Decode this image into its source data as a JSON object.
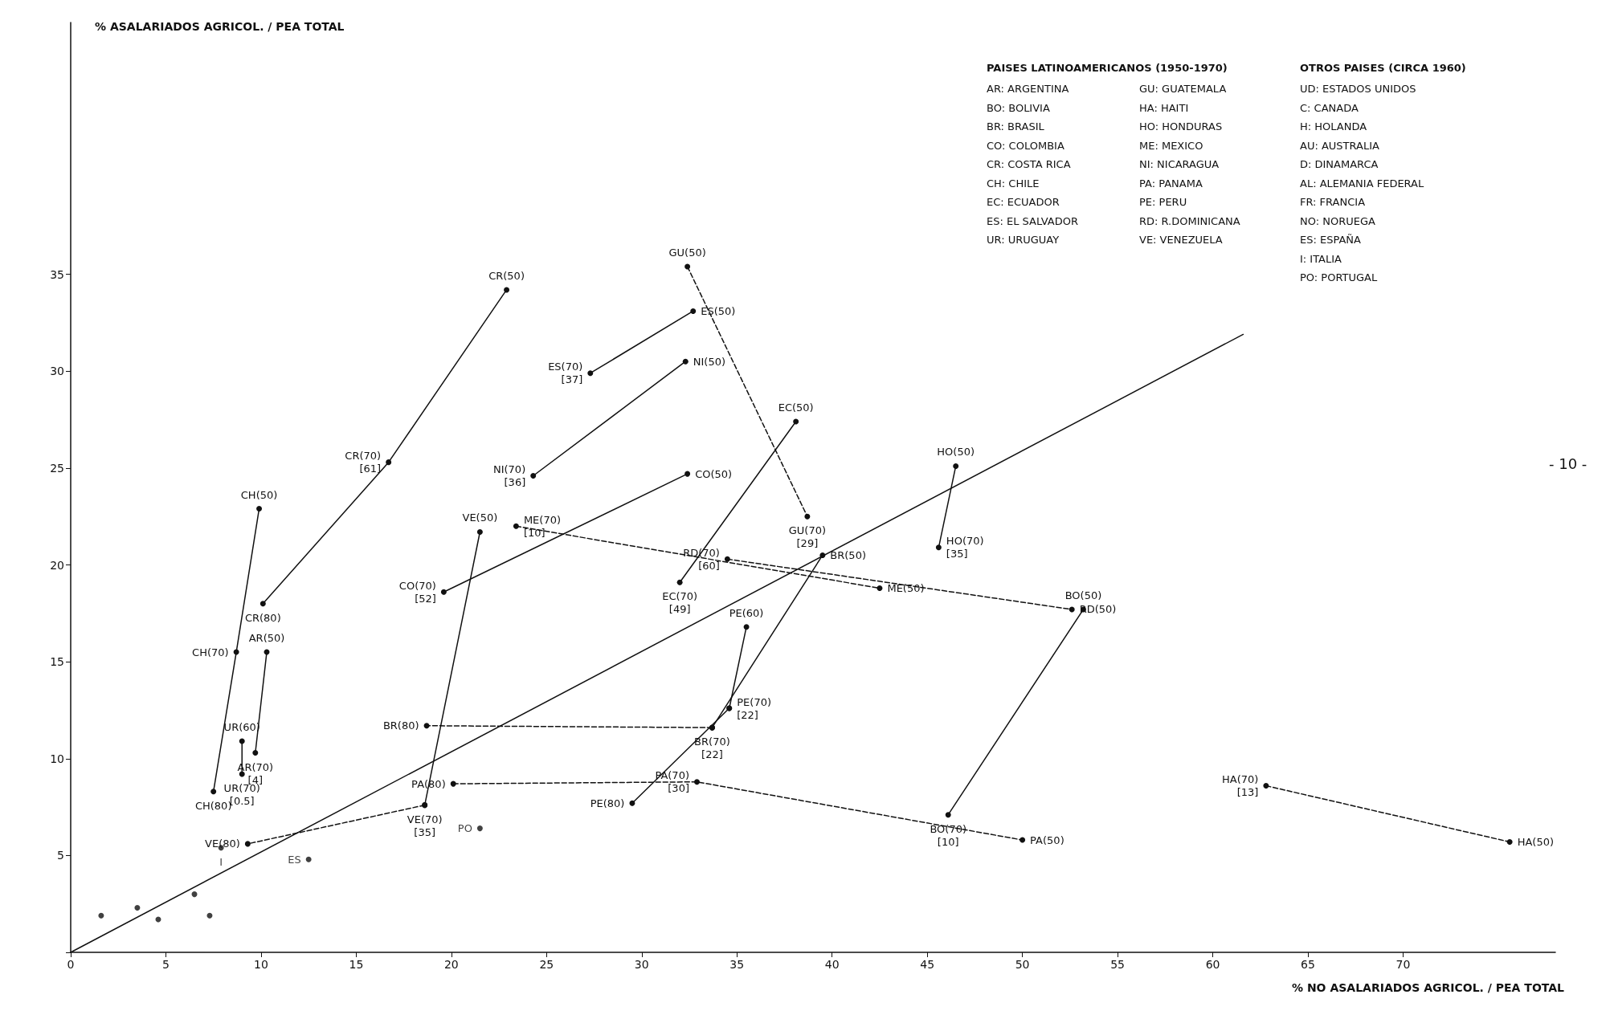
{
  "chart_data": {
    "type": "line",
    "xlabel": "% NO ASALARIADOS AGRICOL. / PEA TOTAL",
    "ylabel": "% ASALARIADOS AGRICOL. / PEA TOTAL",
    "xlim": [
      0,
      78
    ],
    "xticks": [
      0,
      5,
      10,
      15,
      20,
      25,
      30,
      35,
      40,
      45,
      50,
      55,
      60,
      65,
      70
    ],
    "ylim": [
      0,
      48
    ],
    "yticks": [
      {
        "value": 0,
        "label": null
      },
      5,
      10,
      15,
      20,
      25,
      30,
      35
    ],
    "grid": false,
    "marker": "circle",
    "annotations": [
      "PAISES LATINOAMERICANOS (1950-1970)",
      "AR: ARGENTINA",
      "BO: BOLIVIA",
      "BR: BRASIL",
      "CO: COLOMBIA",
      "CR: COSTA RICA",
      "CH: CHILE",
      "EC: ECUADOR",
      "ES: EL SALVADOR",
      "UR: URUGUAY",
      "GU: GUATEMALA",
      "HA: HAITI",
      "HO: HONDURAS",
      "ME: MEXICO",
      "NI: NICARAGUA",
      "PA: PANAMA",
      "PE: PERU",
      "RD: R.DOMINICANA",
      "VE: VENEZUELA",
      "OTROS PAISES (CIRCA 1960)",
      "UD: ESTADOS UNIDOS",
      "C: CANADA",
      "H: HOLANDA",
      "AU: AUSTRALIA",
      "D: DINAMARCA",
      "AL: ALEMANIA FEDERAL",
      "FR: FRANCIA",
      "NO: NORUEGA",
      "ES: ESPAÑA",
      "I: ITALIA",
      "PO: PORTUGAL",
      "- 10 -"
    ],
    "series": [
      {
        "x": [
          0,
          61.6
        ],
        "values": [
          0,
          31.9
        ],
        "marker": "none",
        "line_style": "solid"
      },
      {
        "x": [
          22.9,
          16.7,
          10.1
        ],
        "values": [
          34.2,
          25.3,
          18.0
        ],
        "value_labels": [
          "CR(50)",
          "CR(70)\n[61]",
          "CR(80)"
        ],
        "line_style": "solid"
      },
      {
        "x": [
          9.9,
          8.7,
          7.5
        ],
        "values": [
          22.9,
          15.5,
          8.3
        ],
        "value_labels": [
          "CH(50)",
          "CH(70)",
          "CH(80)"
        ],
        "line_style": "solid"
      },
      {
        "x": [
          10.3,
          9.7
        ],
        "values": [
          15.5,
          10.3
        ],
        "value_labels": [
          "AR(50)",
          "AR(70)\n[4]"
        ],
        "line_style": "solid"
      },
      {
        "x": [
          9.0,
          9.0
        ],
        "values": [
          10.9,
          9.2
        ],
        "value_labels": [
          "UR(60)",
          "UR(70)\n[0.5]"
        ],
        "line_style": "solid"
      },
      {
        "x": [
          32.7,
          27.3
        ],
        "values": [
          33.1,
          29.9
        ],
        "value_labels": [
          "ES(50)",
          "ES(70)\n[37]"
        ],
        "line_style": "solid"
      },
      {
        "x": [
          32.3,
          24.3
        ],
        "values": [
          30.5,
          24.6
        ],
        "value_labels": [
          "NI(50)",
          "NI(70)\n[36]"
        ],
        "line_style": "solid"
      },
      {
        "x": [
          32.4,
          38.7
        ],
        "values": [
          35.4,
          22.5
        ],
        "value_labels": [
          "GU(50)",
          "GU(70)\n[29]"
        ],
        "line_style": "dashed"
      },
      {
        "x": [
          38.1,
          32.0
        ],
        "values": [
          27.4,
          19.1
        ],
        "value_labels": [
          "EC(50)",
          "EC(70)\n[49]"
        ],
        "line_style": "solid"
      },
      {
        "x": [
          32.4,
          19.6
        ],
        "values": [
          24.7,
          18.6
        ],
        "value_labels": [
          "CO(50)",
          "CO(70)\n[52]"
        ],
        "line_style": "solid"
      },
      {
        "x": [
          21.5,
          18.6
        ],
        "values": [
          21.7,
          7.6
        ],
        "value_labels": [
          "VE(50)",
          "VE(70)\n[35]"
        ],
        "line_style": "solid"
      },
      {
        "x": [
          18.6,
          9.3
        ],
        "values": [
          7.6,
          5.6
        ],
        "value_labels": [
          null,
          "VE(80)"
        ],
        "line_style": "dashed"
      },
      {
        "x": [
          23.4,
          42.5
        ],
        "values": [
          22.0,
          18.8
        ],
        "value_labels": [
          "ME(70)\n[10]",
          "ME(50)"
        ],
        "line_style": "dashed"
      },
      {
        "x": [
          34.5,
          52.6
        ],
        "values": [
          20.3,
          17.7
        ],
        "value_labels": [
          "RD(70)\n[60]",
          "RD(50)"
        ],
        "line_style": "dashed"
      },
      {
        "x": [
          46.5,
          45.6
        ],
        "values": [
          25.1,
          20.9
        ],
        "value_labels": [
          "HO(50)",
          "HO(70)\n[35]"
        ],
        "line_style": "solid"
      },
      {
        "x": [
          39.5,
          33.7
        ],
        "values": [
          20.5,
          11.6
        ],
        "value_labels": [
          "BR(50)",
          "BR(70)\n[22]"
        ],
        "line_style": "solid"
      },
      {
        "x": [
          33.7,
          18.7
        ],
        "values": [
          11.6,
          11.7
        ],
        "value_labels": [
          null,
          "BR(80)"
        ],
        "line_style": "dashed"
      },
      {
        "x": [
          35.5,
          34.6
        ],
        "values": [
          16.8,
          12.6
        ],
        "value_labels": [
          "PE(60)",
          "PE(70)\n[22]"
        ],
        "line_style": "solid"
      },
      {
        "x": [
          29.5,
          34.6
        ],
        "values": [
          7.7,
          12.6
        ],
        "value_labels": [
          "PE(80)",
          null
        ],
        "line_style": "solid"
      },
      {
        "x": [
          20.1,
          32.9,
          50.0
        ],
        "values": [
          8.7,
          8.8,
          5.8
        ],
        "value_labels": [
          "PA(80)",
          "PA(70)\n[30]",
          "PA(50)"
        ],
        "line_style": "dashed"
      },
      {
        "x": [
          53.2,
          46.1
        ],
        "values": [
          17.7,
          7.1
        ],
        "value_labels": [
          "BO(50)",
          "BO(70)\n[10]"
        ],
        "line_style": "solid"
      },
      {
        "x": [
          62.8,
          75.6
        ],
        "values": [
          8.6,
          5.7
        ],
        "value_labels": [
          "HA(70)\n[13]",
          "HA(50)"
        ],
        "line_style": "dashed"
      },
      {
        "type": "scatter",
        "x": [
          7.9,
          12.5,
          21.5,
          1.6,
          3.5,
          4.6,
          6.5,
          7.3
        ],
        "values": [
          5.4,
          4.8,
          6.4,
          1.9,
          2.3,
          1.7,
          3.0,
          1.9
        ],
        "value_labels": [
          "I",
          "ES",
          "PO",
          null,
          null,
          null,
          null,
          null
        ]
      }
    ]
  }
}
